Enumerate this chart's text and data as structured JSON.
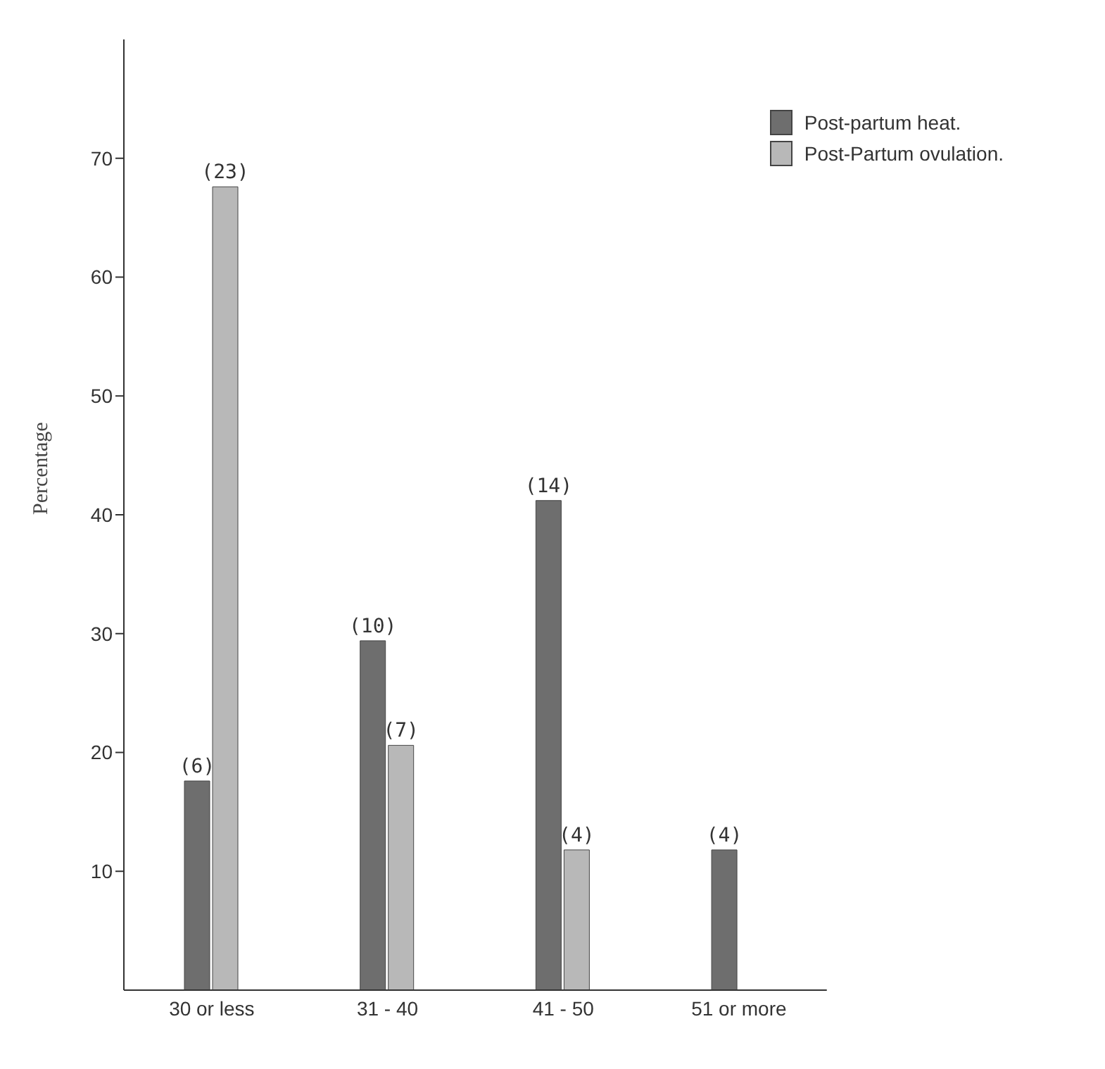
{
  "chart_data": {
    "type": "bar",
    "ylabel": "Percentage",
    "categories": [
      "30 or less",
      "31 - 40",
      "41 - 50",
      "51 or more"
    ],
    "series": [
      {
        "name": "Post-partum heat.",
        "color": "#6e6e6e",
        "values": [
          17.6,
          29.4,
          41.2,
          11.8
        ]
      },
      {
        "name": "Post-Partum ovulation.",
        "color": "#b8b8b8",
        "values": [
          67.6,
          20.6,
          11.8,
          null
        ]
      }
    ],
    "annotations": [
      {
        "text": "(6)",
        "x": "30 or less",
        "y": 17.6
      },
      {
        "text": "(23)",
        "x": "30 or less",
        "y": 67.6
      },
      {
        "text": "(10)",
        "x": "31 - 40",
        "y": 29.4
      },
      {
        "text": "(7)",
        "x": "31 - 40",
        "y": 20.6
      },
      {
        "text": "(14)",
        "x": "41 - 50",
        "y": 41.2
      },
      {
        "text": "(4)",
        "x": "41 - 50",
        "y": 11.8
      },
      {
        "text": "(4)",
        "x": "51 or more",
        "y": 11.8
      }
    ],
    "ylim": [
      0,
      80
    ],
    "yticks": [
      10,
      20,
      30,
      40,
      50,
      60,
      70
    ],
    "grid": false,
    "legend": "top right"
  }
}
